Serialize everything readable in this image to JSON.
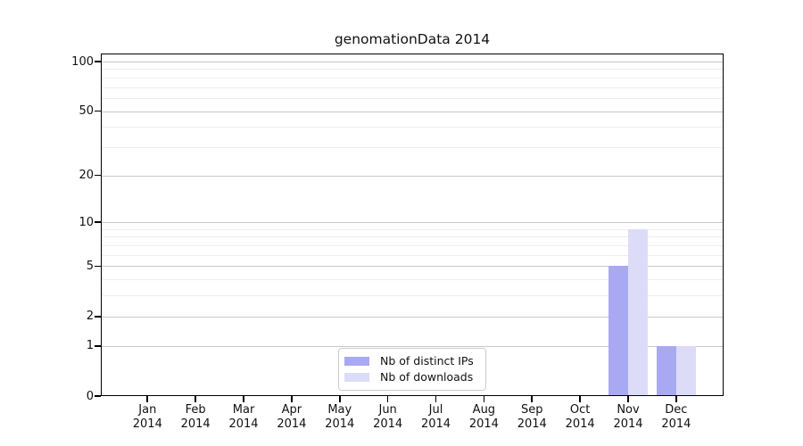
{
  "figure": {
    "title": "genomationData 2014",
    "background": "#ffffff"
  },
  "chart_data": {
    "type": "bar",
    "title": "genomationData 2014",
    "xlabel": "",
    "ylabel": "",
    "scale": "log1p",
    "ylim": [
      0,
      100
    ],
    "grid": "horizontal",
    "legend_position": "bottom-center",
    "categories": [
      "Jan 2014",
      "Feb 2014",
      "Mar 2014",
      "Apr 2014",
      "May 2014",
      "Jun 2014",
      "Jul 2014",
      "Aug 2014",
      "Sep 2014",
      "Oct 2014",
      "Nov 2014",
      "Dec 2014"
    ],
    "series": [
      {
        "name": "Nb of distinct IPs",
        "color": "#a9a9f3",
        "values": [
          0,
          0,
          0,
          0,
          0,
          0,
          0,
          0,
          0,
          0,
          5,
          1
        ]
      },
      {
        "name": "Nb of downloads",
        "color": "#dcdcf8",
        "values": [
          0,
          0,
          0,
          0,
          0,
          0,
          0,
          0,
          0,
          0,
          9,
          1
        ]
      }
    ],
    "y_major_ticks": [
      0,
      1,
      2,
      5,
      10,
      20,
      50,
      100
    ],
    "y_minor_gridlines": [
      3,
      4,
      6,
      7,
      8,
      9,
      30,
      40,
      60,
      70,
      80,
      90
    ]
  },
  "colors": {
    "bar_distinct_ips": "#a9a9f3",
    "bar_downloads": "#dcdcf8",
    "grid_major": "#c8c8c8",
    "grid_minor": "#ededed",
    "axis_frame": "#000000",
    "legend_border": "#cccccc",
    "text": "#111111"
  }
}
